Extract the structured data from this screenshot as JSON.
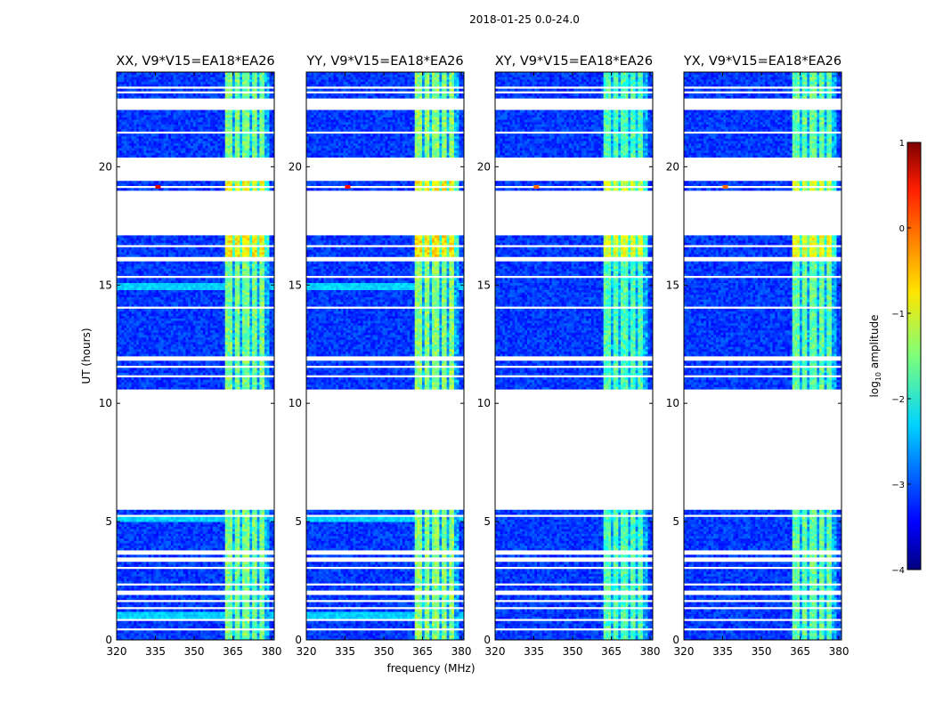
{
  "figure_title": "2018-01-25 0.0-24.0",
  "chart_data": {
    "type": "heatmap",
    "description_series": "dynamic spectra of log10 visibility amplitude per polarization",
    "xlabel": "frequency (MHz)",
    "ylabel": "UT (hours)",
    "xlim": [
      320,
      381
    ],
    "ylim": [
      0,
      24
    ],
    "xticks": [
      320,
      335,
      350,
      365,
      380
    ],
    "yticks": [
      0,
      5,
      10,
      15,
      20
    ],
    "colorbar": {
      "label_prefix": "log",
      "label_subscript": "10",
      "label_suffix": " amplitude",
      "range": [
        -4,
        1
      ],
      "ticks": [
        -4,
        -3,
        -2,
        -1,
        0,
        1
      ],
      "colormap": "jet"
    },
    "panels": [
      {
        "title": "XX, V9*V15=EA18*EA26",
        "pol": "XX",
        "burst_level": 0.85,
        "band_level": 0.5
      },
      {
        "title": "YY, V9*V15=EA18*EA26",
        "pol": "YY",
        "burst_level": 0.8,
        "band_level": 0.52
      },
      {
        "title": "XY, V9*V15=EA18*EA26",
        "pol": "XY",
        "burst_level": 0.7,
        "band_level": 0.46
      },
      {
        "title": "YX, V9*V15=EA18*EA26",
        "pol": "YX",
        "burst_level": 0.7,
        "band_level": 0.48
      }
    ],
    "data_segments_ut_hours": [
      [
        0.0,
        5.5
      ],
      [
        10.6,
        16.0
      ],
      [
        16.2,
        17.1
      ],
      [
        19.0,
        19.4
      ],
      [
        20.4,
        22.4
      ],
      [
        22.9,
        24.0
      ]
    ],
    "flagged_rows_ut_hours": [
      0.4,
      0.8,
      1.4,
      1.7,
      2.0,
      2.4,
      3.0,
      3.4,
      3.6,
      3.7,
      5.2,
      11.2,
      11.6,
      11.9,
      12.4,
      13.3,
      14.1,
      14.6,
      14.8,
      15.3,
      16.6,
      19.2,
      20.8,
      21.2,
      21.5,
      21.8,
      23.1,
      23.4,
      23.6
    ],
    "bright_rows_ut_hours": [
      [
        0.95,
        1.2
      ],
      [
        5.0,
        5.3
      ],
      [
        14.8,
        15.1
      ]
    ],
    "rfi_channel_range_mhz": [
      362,
      379
    ],
    "rfi_channel_centers_mhz": [
      363.5,
      366.5,
      370.0,
      373.5,
      376.5
    ],
    "hot_pixel": {
      "freq_mhz": 336,
      "ut": 19.15,
      "value": 0.8
    }
  }
}
